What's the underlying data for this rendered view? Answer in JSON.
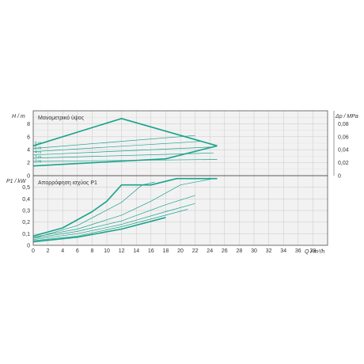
{
  "colors": {
    "curve": "#1aa38c",
    "grid": "#c8c8c8",
    "panel": "#f2f2f2",
    "frame": "#555555",
    "text": "#333333"
  },
  "chart_data": [
    {
      "type": "line",
      "title": "Μανομετρικό ύψος",
      "ylabel_left": "H / m",
      "ylabel_right": "Δp / MPa",
      "xlim": [
        0,
        40
      ],
      "ylim": [
        0,
        10
      ],
      "y_ticks_left": [
        "0",
        "2",
        "4",
        "6",
        "8"
      ],
      "y_ticks_right": [
        "0",
        "0,02",
        "0,04",
        "0,06",
        "0,08"
      ],
      "grid": true,
      "curve_labels": [
        "6 m",
        "5 m",
        "4 m",
        "3 m",
        "2 m"
      ],
      "series": [
        {
          "x": [
            0,
            12,
            25
          ],
          "y": [
            4.6,
            8.8,
            4.6
          ]
        },
        {
          "x": [
            0,
            18,
            25
          ],
          "y": [
            1.5,
            2.6,
            4.6
          ]
        },
        {
          "x": [
            0,
            22
          ],
          "y": [
            4.2,
            6.2
          ]
        },
        {
          "x": [
            0,
            23
          ],
          "y": [
            3.7,
            5.3
          ]
        },
        {
          "x": [
            0,
            24
          ],
          "y": [
            3.2,
            4.4
          ]
        },
        {
          "x": [
            0,
            24.5
          ],
          "y": [
            2.7,
            3.5
          ]
        },
        {
          "x": [
            0,
            25
          ],
          "y": [
            2.2,
            2.5
          ]
        }
      ]
    },
    {
      "type": "line",
      "title": "Απορρόφηση ισχύος P1",
      "ylabel": "P1 / kW",
      "xlabel": "Q / m³/h",
      "xlim": [
        0,
        40
      ],
      "ylim": [
        0,
        0.6
      ],
      "y_ticks": [
        "0",
        "0,1",
        "0,2",
        "0,3",
        "0,4",
        "0,5"
      ],
      "x_ticks": [
        "0",
        "2",
        "4",
        "6",
        "8",
        "10",
        "12",
        "14",
        "16",
        "18",
        "20",
        "22",
        "24",
        "26",
        "28",
        "30",
        "32",
        "34",
        "36",
        "38"
      ],
      "grid": true,
      "series": [
        {
          "x": [
            0,
            4,
            8,
            10,
            12,
            16,
            19.5,
            25
          ],
          "y": [
            0.08,
            0.15,
            0.29,
            0.38,
            0.52,
            0.52,
            0.575,
            0.575
          ]
        },
        {
          "x": [
            0,
            6,
            12,
            18
          ],
          "y": [
            0.03,
            0.07,
            0.14,
            0.24
          ]
        },
        {
          "x": [
            0,
            6,
            12,
            16,
            20,
            24.5
          ],
          "y": [
            0.07,
            0.14,
            0.26,
            0.38,
            0.52,
            0.575
          ]
        },
        {
          "x": [
            0,
            6,
            12,
            18,
            22
          ],
          "y": [
            0.06,
            0.12,
            0.21,
            0.35,
            0.43
          ]
        },
        {
          "x": [
            0,
            6,
            12,
            18,
            22
          ],
          "y": [
            0.05,
            0.1,
            0.18,
            0.29,
            0.36
          ]
        },
        {
          "x": [
            0,
            6,
            12,
            18,
            21
          ],
          "y": [
            0.04,
            0.08,
            0.16,
            0.26,
            0.31
          ]
        },
        {
          "x": [
            0,
            6,
            12,
            14.8,
            16.5
          ],
          "y": [
            0.06,
            0.17,
            0.37,
            0.52,
            0.545
          ]
        }
      ]
    }
  ]
}
